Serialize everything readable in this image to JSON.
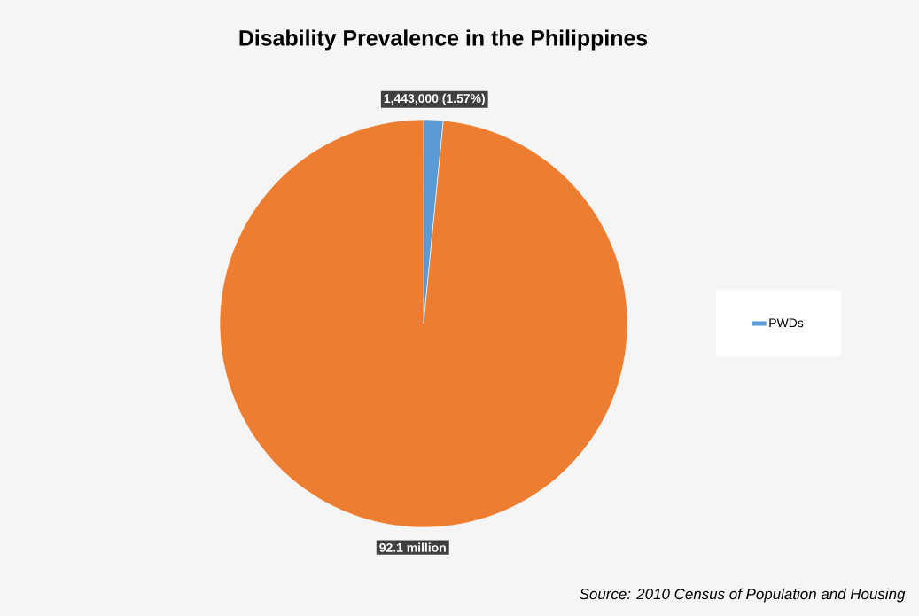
{
  "chart_data": {
    "type": "pie",
    "title": "Disability Prevalence in the Philippines",
    "categories": [
      "PWDs",
      null
    ],
    "values": [
      1443000,
      92100000
    ],
    "value_labels": [
      "1,443,000 (1.57%)",
      "92.1 million"
    ],
    "colors": [
      "#5b9bd5",
      "#ed7d31"
    ],
    "legend": "right",
    "annotations": [
      "Source: 2010 Census of Population and Housing"
    ]
  }
}
